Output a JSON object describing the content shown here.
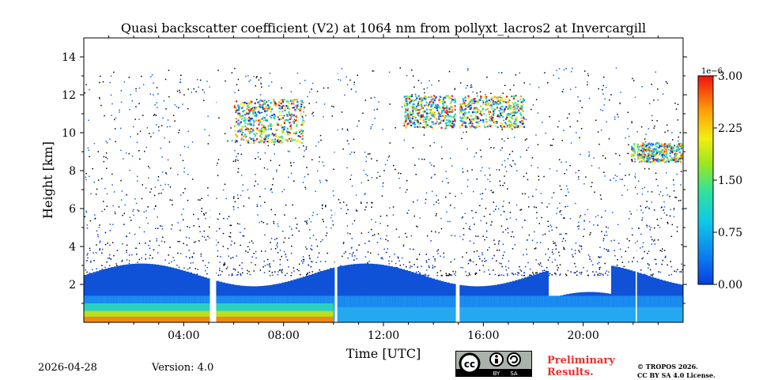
{
  "chart_data": {
    "type": "heatmap",
    "title": "Quasi backscatter coefficient (V2) at 1064 nm from pollyxt_lacros2 at Invercargill",
    "xlabel": "Time [UTC]",
    "ylabel": "Height [km]",
    "xlim_hours": [
      0,
      24
    ],
    "ylim_km": [
      0,
      15
    ],
    "x_ticks": [
      {
        "value": 4,
        "label": "04:00"
      },
      {
        "value": 8,
        "label": "08:00"
      },
      {
        "value": 12,
        "label": "12:00"
      },
      {
        "value": 16,
        "label": "16:00"
      },
      {
        "value": 20,
        "label": "20:00"
      }
    ],
    "y_ticks": [
      {
        "value": 2,
        "label": "2"
      },
      {
        "value": 4,
        "label": "4"
      },
      {
        "value": 6,
        "label": "6"
      },
      {
        "value": 8,
        "label": "8"
      },
      {
        "value": 10,
        "label": "10"
      },
      {
        "value": 12,
        "label": "12"
      },
      {
        "value": 14,
        "label": "14"
      }
    ],
    "colorbar": {
      "min": 0.0,
      "max": 3.0,
      "scale_label": "1e−6",
      "ticks": [
        {
          "value": 0.0,
          "label": "0.00"
        },
        {
          "value": 0.75,
          "label": "0.75"
        },
        {
          "value": 1.5,
          "label": "1.50"
        },
        {
          "value": 2.25,
          "label": "2.25"
        },
        {
          "value": 3.0,
          "label": "3.00"
        }
      ]
    },
    "data_gaps_hours": [
      [
        5.05,
        5.3
      ],
      [
        10.05,
        10.15
      ],
      [
        14.9,
        15.05
      ],
      [
        22.1,
        22.15
      ]
    ],
    "boundary_layer_top_km": 2.5,
    "cloud_layers": [
      {
        "t_start": 6.0,
        "t_end": 8.8,
        "base_km": 9.5,
        "top_km": 11.8
      },
      {
        "t_start": 12.8,
        "t_end": 17.6,
        "base_km": 10.3,
        "top_km": 12.0
      },
      {
        "t_start": 21.9,
        "t_end": 24.0,
        "base_km": 8.5,
        "top_km": 9.5
      }
    ]
  },
  "footer": {
    "date": "2026-04-28",
    "version": "Version: 4.0",
    "preliminary_line1": "Preliminary",
    "preliminary_line2": "Results.",
    "copyright_line1": "© TROPOS 2026.",
    "copyright_line2": "CC BY SA 4.0 License.",
    "cc_badge": {
      "cc": "cc",
      "by": "BY",
      "sa": "SA"
    }
  }
}
